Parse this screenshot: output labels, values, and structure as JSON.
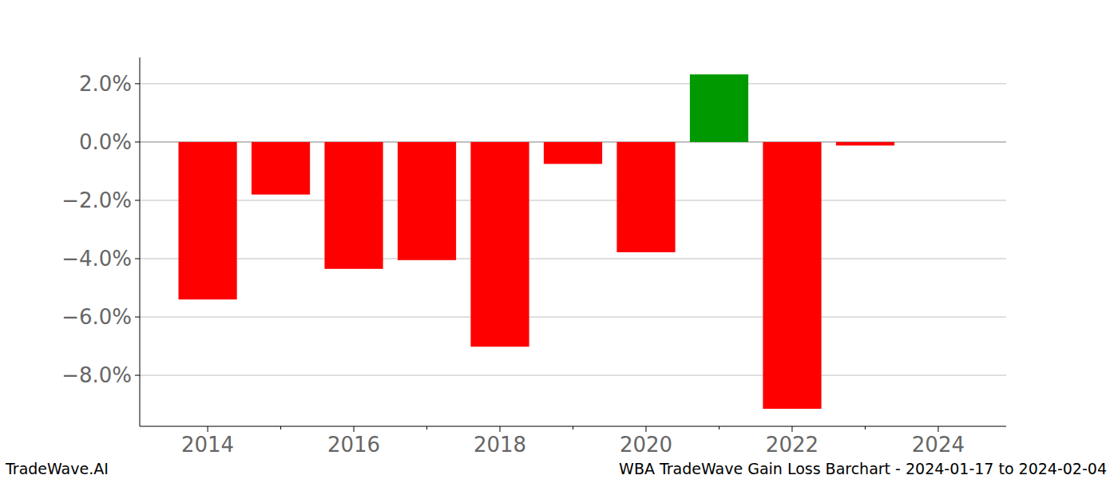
{
  "chart_data": {
    "type": "bar",
    "title": "WBA TradeWave Gain Loss Barchart - 2024-01-17 to 2024-02-04",
    "annotations": [
      "TradeWave.AI"
    ],
    "x": [
      2014,
      2015,
      2016,
      2017,
      2018,
      2019,
      2020,
      2021,
      2022,
      2023
    ],
    "values": [
      -5.4,
      -1.8,
      -4.35,
      -4.05,
      -7.02,
      -0.75,
      -3.78,
      2.32,
      -9.15,
      -0.12
    ],
    "colors": [
      "#ff0000",
      "#ff0000",
      "#ff0000",
      "#ff0000",
      "#ff0000",
      "#ff0000",
      "#ff0000",
      "#009900",
      "#ff0000",
      "#ff0000"
    ],
    "xlim": [
      2013.07,
      2024.93
    ],
    "xticks": [
      2014,
      2016,
      2018,
      2020,
      2022,
      2024
    ],
    "ylim": [
      -9.75,
      2.9
    ],
    "yticks": [
      {
        "value": -8,
        "label": "−8.0%"
      },
      {
        "value": -6,
        "label": "−6.0%"
      },
      {
        "value": -4,
        "label": "−4.0%"
      },
      {
        "value": -2,
        "label": "−2.0%"
      },
      {
        "value": 0,
        "label": "0.0%"
      },
      {
        "value": 2,
        "label": "2.0%"
      }
    ],
    "grid": true
  }
}
